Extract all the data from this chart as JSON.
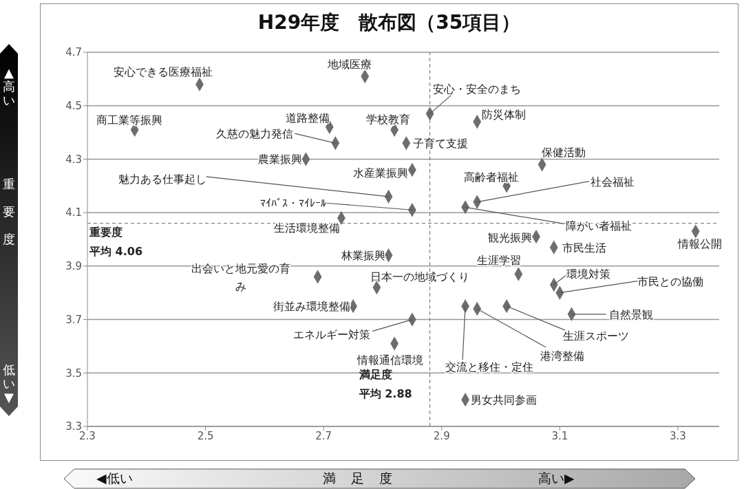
{
  "chart_data": {
    "type": "scatter",
    "title": "H29年度　散布図（35項目）",
    "xlabel": "満足度",
    "ylabel": "重要度",
    "x": [
      2.49,
      2.77,
      2.88,
      2.38,
      2.71,
      2.82,
      2.96,
      2.72,
      2.84,
      2.67,
      3.07,
      2.85,
      3.01,
      2.81,
      2.96,
      2.94,
      2.85,
      2.73,
      3.06,
      3.33,
      3.09,
      2.81,
      3.03,
      2.69,
      2.79,
      3.09,
      3.1,
      2.75,
      2.94,
      2.96,
      3.01,
      3.12,
      2.85,
      2.82,
      2.94
    ],
    "series": [
      {
        "color": "#6d6d6d",
        "values": [
          4.58,
          4.61,
          4.47,
          4.41,
          4.42,
          4.41,
          4.44,
          4.36,
          4.36,
          4.3,
          4.28,
          4.26,
          4.2,
          4.16,
          4.14,
          4.12,
          4.11,
          4.08,
          4.01,
          4.03,
          3.97,
          3.94,
          3.87,
          3.86,
          3.82,
          3.83,
          3.8,
          3.75,
          3.75,
          3.74,
          3.75,
          3.72,
          3.7,
          3.61,
          3.4
        ]
      }
    ],
    "xlim": [
      2.3,
      3.37
    ],
    "ylim": [
      3.3,
      4.7
    ],
    "xticks": [
      2.3,
      2.5,
      2.7,
      2.9,
      3.1,
      3.3
    ],
    "yticks": [
      3.3,
      3.5,
      3.7,
      3.9,
      4.1,
      4.3,
      4.5,
      4.7
    ],
    "grid": "y",
    "marker": "diamond",
    "ref_lines": [
      {
        "axis": "x",
        "value": 2.88,
        "label": "平均 2.88",
        "line_style": "dashed"
      },
      {
        "axis": "y",
        "value": 4.06,
        "label": "平均 4.06",
        "line_style": "dashed"
      }
    ],
    "annotations": [
      {
        "text": "安心できる医療福祉",
        "x": 2.49,
        "y": 4.58
      },
      {
        "text": "地域医療",
        "x": 2.77,
        "y": 4.61
      },
      {
        "text": "安心・安全のまち",
        "x": 2.88,
        "y": 4.47
      },
      {
        "text": "商工業等振興",
        "x": 2.38,
        "y": 4.41
      },
      {
        "text": "道路整備",
        "x": 2.71,
        "y": 4.42
      },
      {
        "text": "学校教育",
        "x": 2.82,
        "y": 4.41
      },
      {
        "text": "防災体制",
        "x": 2.96,
        "y": 4.44
      },
      {
        "text": "久慈の魅力発信",
        "x": 2.72,
        "y": 4.36
      },
      {
        "text": "子育て支援",
        "x": 2.84,
        "y": 4.36
      },
      {
        "text": "農業振興",
        "x": 2.67,
        "y": 4.3
      },
      {
        "text": "保健活動",
        "x": 3.07,
        "y": 4.28
      },
      {
        "text": "水産業振興",
        "x": 2.85,
        "y": 4.26
      },
      {
        "text": "高齢者福祉",
        "x": 3.01,
        "y": 4.2
      },
      {
        "text": "魅力ある仕事起し",
        "x": 2.81,
        "y": 4.16
      },
      {
        "text": "社会福祉",
        "x": 2.96,
        "y": 4.14
      },
      {
        "text": "障がい者福祉",
        "x": 2.94,
        "y": 4.12
      },
      {
        "text": "ﾏｲﾊﾞｽ・ﾏｲﾚｰﾙ",
        "x": 2.85,
        "y": 4.11
      },
      {
        "text": "生活環境整備",
        "x": 2.73,
        "y": 4.08
      },
      {
        "text": "観光振興",
        "x": 3.06,
        "y": 4.01
      },
      {
        "text": "情報公開",
        "x": 3.33,
        "y": 4.03
      },
      {
        "text": "市民生活",
        "x": 3.09,
        "y": 3.97
      },
      {
        "text": "林業振興",
        "x": 2.81,
        "y": 3.94
      },
      {
        "text": "生涯学習",
        "x": 3.03,
        "y": 3.87
      },
      {
        "text": "出会いと地元愛の育み",
        "x": 2.69,
        "y": 3.86
      },
      {
        "text": "日本一の地域づくり",
        "x": 2.79,
        "y": 3.82
      },
      {
        "text": "環境対策",
        "x": 3.09,
        "y": 3.83
      },
      {
        "text": "市民との協働",
        "x": 3.1,
        "y": 3.8
      },
      {
        "text": "街並み環境整備",
        "x": 2.75,
        "y": 3.75
      },
      {
        "text": "交流と移住・定住",
        "x": 2.94,
        "y": 3.75
      },
      {
        "text": "港湾整備",
        "x": 2.96,
        "y": 3.74
      },
      {
        "text": "生涯スポーツ",
        "x": 3.01,
        "y": 3.75
      },
      {
        "text": "自然景観",
        "x": 3.12,
        "y": 3.72
      },
      {
        "text": "エネルギー対策",
        "x": 2.85,
        "y": 3.7
      },
      {
        "text": "情報通信環境",
        "x": 2.82,
        "y": 3.61
      },
      {
        "text": "男女共同参画",
        "x": 2.94,
        "y": 3.4
      },
      "▲高い",
      "低い▼",
      "◀低い",
      "高い▶",
      "満足度",
      "重要度"
    ]
  }
}
